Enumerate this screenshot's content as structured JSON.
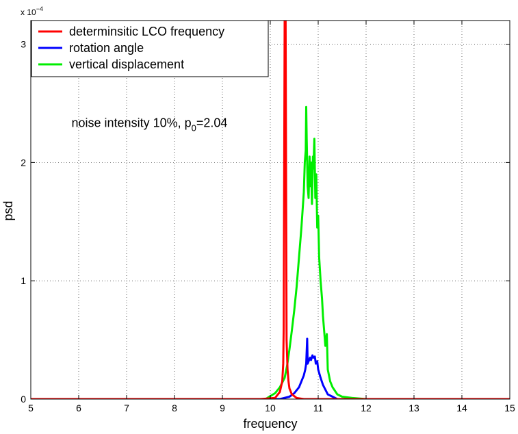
{
  "chart_data": {
    "type": "line",
    "xlabel": "frequency",
    "ylabel": "psd",
    "xlim": [
      5,
      15
    ],
    "ylim": [
      0,
      3.2
    ],
    "y_multiplier_text": "x 10",
    "y_multiplier_exponent": "−4",
    "xticks": [
      5,
      6,
      7,
      8,
      9,
      10,
      11,
      12,
      13,
      14,
      15
    ],
    "yticks": [
      0,
      1,
      2,
      3
    ],
    "grid": true,
    "legend_position": "top-left",
    "annotation": {
      "prefix": "noise intensity 10%, p",
      "subscript": "0",
      "suffix": "=2.04",
      "anchor_x": 5.85,
      "anchor_y": 2.3
    },
    "series": [
      {
        "name": "determinsitic LCO frequency",
        "color": "#ff0000",
        "x": [
          5,
          9.8,
          10.1,
          10.2,
          10.25,
          10.27,
          10.28,
          10.3,
          10.32,
          10.34,
          10.36,
          10.38,
          10.4,
          10.45,
          10.55,
          10.7,
          15
        ],
        "y": [
          0,
          0,
          0.01,
          0.06,
          0.15,
          0.3,
          0.6,
          3.2,
          3.2,
          0.5,
          0.25,
          0.15,
          0.09,
          0.04,
          0.01,
          0,
          0
        ]
      },
      {
        "name": "rotation angle",
        "color": "#0000ff",
        "x": [
          5,
          10.2,
          10.4,
          10.5,
          10.6,
          10.65,
          10.7,
          10.73,
          10.75,
          10.77,
          10.78,
          10.8,
          10.83,
          10.85,
          10.88,
          10.9,
          10.93,
          10.95,
          10.98,
          11.0,
          11.05,
          11.1,
          11.15,
          11.2,
          11.3,
          11.4,
          15
        ],
        "y": [
          0,
          0,
          0.02,
          0.05,
          0.1,
          0.15,
          0.2,
          0.25,
          0.3,
          0.51,
          0.3,
          0.32,
          0.35,
          0.33,
          0.37,
          0.35,
          0.36,
          0.3,
          0.32,
          0.25,
          0.18,
          0.12,
          0.08,
          0.04,
          0.02,
          0,
          0
        ]
      },
      {
        "name": "vertical displacement",
        "color": "#00ee00",
        "x": [
          5,
          9.9,
          10.1,
          10.2,
          10.3,
          10.35,
          10.4,
          10.45,
          10.5,
          10.55,
          10.6,
          10.65,
          10.7,
          10.72,
          10.74,
          10.75,
          10.76,
          10.78,
          10.8,
          10.82,
          10.84,
          10.85,
          10.87,
          10.89,
          10.9,
          10.92,
          10.94,
          10.96,
          10.98,
          11.0,
          11.02,
          11.05,
          11.08,
          11.1,
          11.12,
          11.15,
          11.18,
          11.2,
          11.25,
          11.3,
          11.4,
          11.5,
          11.7,
          12.0,
          15
        ],
        "y": [
          0,
          0,
          0.05,
          0.1,
          0.18,
          0.28,
          0.42,
          0.58,
          0.75,
          0.95,
          1.2,
          1.45,
          1.75,
          2.0,
          2.1,
          2.47,
          2.2,
          1.8,
          1.7,
          2.05,
          1.8,
          2.0,
          1.65,
          2.05,
          1.95,
          2.2,
          1.7,
          1.9,
          1.45,
          1.55,
          1.2,
          1.0,
          0.85,
          0.7,
          0.6,
          0.45,
          0.55,
          0.25,
          0.15,
          0.1,
          0.04,
          0.02,
          0.01,
          0,
          0
        ]
      }
    ]
  }
}
